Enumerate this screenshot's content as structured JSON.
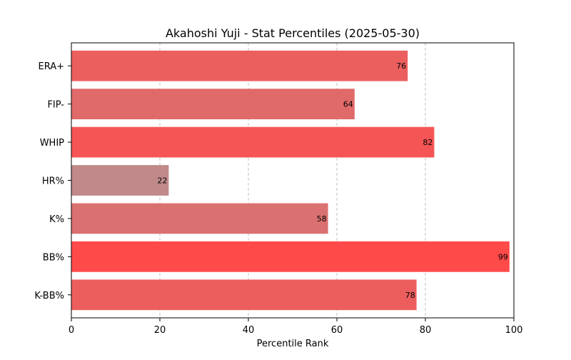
{
  "chart_data": {
    "type": "bar",
    "orientation": "horizontal",
    "title": "Akahoshi Yuji - Stat Percentiles (2025-05-30)",
    "xlabel": "Percentile Rank",
    "ylabel": "",
    "xlim": [
      0,
      100
    ],
    "xticks": [
      0,
      20,
      40,
      60,
      80,
      100
    ],
    "grid": "x-dashed",
    "categories": [
      "ERA+",
      "FIP-",
      "WHIP",
      "HR%",
      "K%",
      "BB%",
      "K-BB%"
    ],
    "values": [
      76,
      64,
      82,
      22,
      58,
      99,
      78
    ],
    "colors": [
      "#eb5f5f",
      "#e06a6a",
      "#f55555",
      "#c08a8a",
      "#db7070",
      "#ff4a4a",
      "#ec5e5e"
    ]
  }
}
